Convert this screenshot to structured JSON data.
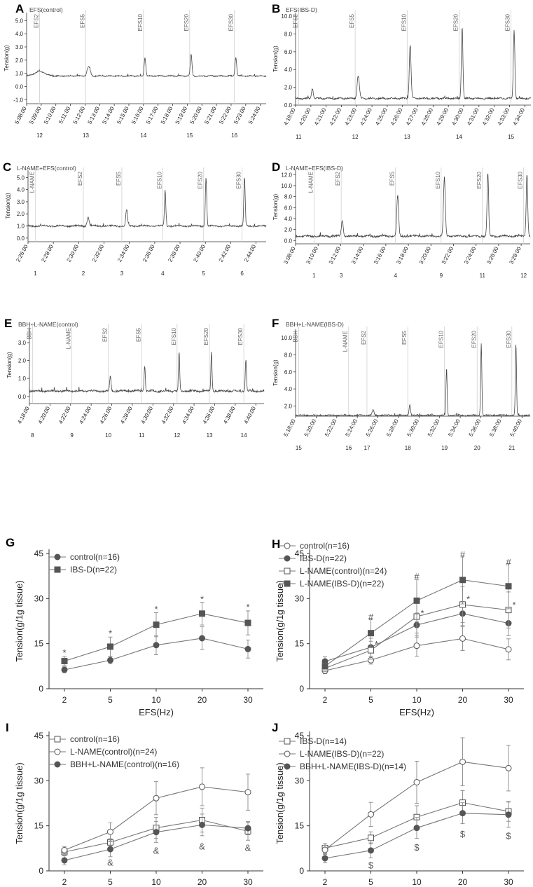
{
  "chart_data": [
    {
      "letter": "A",
      "type": "line",
      "title": "EFS(control)",
      "ylabel": "Tension(g)",
      "ylim": [
        -1.3,
        5.6
      ],
      "yticks": [
        "5.0",
        "4.0",
        "3.0",
        "2.0",
        "1.0",
        "0.0",
        "-1.0"
      ],
      "ytickvals": [
        5,
        4,
        3,
        2,
        1,
        0,
        -1
      ],
      "times": [
        "5:08:00",
        "5:09:00",
        "5:10:00",
        "5:11:00",
        "5:12:00",
        "5:13:00",
        "5:14:00",
        "5:15:00",
        "5:16:00",
        "5:17:00",
        "5:18:00",
        "5:19:00",
        "5:20:00",
        "5:21:00",
        "5:22:00",
        "5:23:00",
        "5:24:00"
      ],
      "tmin": 0,
      "tmax": 16.6,
      "events": [
        {
          "label": "EFS2",
          "t": 0.9,
          "num": "12"
        },
        {
          "label": "EFS5",
          "t": 4.1,
          "num": "13"
        },
        {
          "label": "EFS10",
          "t": 8.1,
          "num": "14"
        },
        {
          "label": "EFS20",
          "t": 11.3,
          "num": "15"
        },
        {
          "label": "EFS30",
          "t": 14.4,
          "num": "16"
        }
      ],
      "baseline": 0.8,
      "peaks": [
        [
          0.9,
          1.15,
          0.5
        ],
        [
          4.3,
          1.5,
          0.15
        ],
        [
          8.2,
          2.2,
          0.08
        ],
        [
          11.4,
          2.4,
          0.08
        ],
        [
          14.5,
          2.2,
          0.08
        ]
      ],
      "noise": 0.04
    },
    {
      "letter": "B",
      "type": "line",
      "title": "EFS(IBS-D)",
      "ylabel": "Tension(g)",
      "ylim": [
        0,
        10.4
      ],
      "yticks": [
        "10.0",
        "8.0",
        "6.0",
        "4.0",
        "2.0",
        "0.0"
      ],
      "ytickvals": [
        10,
        8,
        6,
        4,
        2,
        0
      ],
      "times": [
        "4:19:00",
        "4:20:00",
        "4:21:00",
        "4:22:00",
        "4:23:00",
        "4:24:00",
        "4:25:00",
        "4:26:00",
        "4:27:00",
        "4:28:00",
        "4:29:00",
        "4:30:00",
        "4:31:00",
        "4:32:00",
        "4:33:00",
        "4:34:00"
      ],
      "tmin": 0,
      "tmax": 15.4,
      "events": [
        {
          "label": "EFS2",
          "t": 0.2,
          "num": "11"
        },
        {
          "label": "EFS5",
          "t": 3.9,
          "num": "12"
        },
        {
          "label": "EFS10",
          "t": 7.3,
          "num": "13"
        },
        {
          "label": "EFS20",
          "t": 10.7,
          "num": "14"
        },
        {
          "label": "EFS30",
          "t": 14.1,
          "num": "15"
        }
      ],
      "baseline": 0.75,
      "peaks": [
        [
          1.1,
          1.9,
          0.08
        ],
        [
          4.1,
          3.3,
          0.1
        ],
        [
          7.5,
          6.8,
          0.08
        ],
        [
          10.9,
          8.8,
          0.07
        ],
        [
          14.3,
          8.4,
          0.07
        ]
      ],
      "noise": 0.08
    },
    {
      "letter": "C",
      "type": "line",
      "title": "L-NAME+EFS(control)",
      "ylabel": "Tension(g)",
      "ylim": [
        -0.3,
        5.6
      ],
      "yticks": [
        "5.0",
        "4.0",
        "3.0",
        "2.0",
        "1.0",
        "0.0"
      ],
      "ytickvals": [
        5,
        4,
        3,
        2,
        1,
        0
      ],
      "times": [
        "2:26:00",
        "2:28:00",
        "2:30:00",
        "2:32:00",
        "2:34:00",
        "2:36:00",
        "2:38:00",
        "2:40:00",
        "2:42:00",
        "2:44:00"
      ],
      "tmin": 0,
      "tmax": 9.9,
      "events": [
        {
          "label": "L-NAME",
          "t": 0.3,
          "num": "1"
        },
        {
          "label": "EFS2",
          "t": 2.3,
          "num": "2"
        },
        {
          "label": "EFS5",
          "t": 3.9,
          "num": "3"
        },
        {
          "label": "EFS10",
          "t": 5.6,
          "num": "4"
        },
        {
          "label": "EFS20",
          "t": 7.3,
          "num": "5"
        },
        {
          "label": "EFS30",
          "t": 8.9,
          "num": "6"
        }
      ],
      "baseline": 1.0,
      "peaks": [
        [
          2.5,
          1.7,
          0.06
        ],
        [
          4.1,
          2.35,
          0.05
        ],
        [
          5.7,
          4.0,
          0.04
        ],
        [
          7.4,
          5.0,
          0.04
        ],
        [
          9.0,
          5.0,
          0.04
        ]
      ],
      "noise": 0.06
    },
    {
      "letter": "D",
      "type": "line",
      "title": "L-NAME+EFS(IBS-D)",
      "ylabel": "Tension(g)",
      "ylim": [
        -0.6,
        12.8
      ],
      "yticks": [
        "12.0",
        "10.0",
        "8.0",
        "6.0",
        "4.0",
        "2.0",
        "0.0"
      ],
      "ytickvals": [
        12,
        10,
        8,
        6,
        4,
        2,
        0
      ],
      "times": [
        "3:08:00",
        "3:10:00",
        "3:12:00",
        "3:14:00",
        "3:16:00",
        "3:18:00",
        "3:20:00",
        "3:22:00",
        "3:24:00",
        "3:26:00",
        "3:28:00"
      ],
      "tmin": 0,
      "tmax": 10.8,
      "events": [
        {
          "label": "L-NAME",
          "t": 0.85,
          "num": "1"
        },
        {
          "label": "EFS2",
          "t": 2.1,
          "num": "3"
        },
        {
          "label": "EFS5",
          "t": 4.6,
          "num": "4"
        },
        {
          "label": "EFS10",
          "t": 6.7,
          "num": "9"
        },
        {
          "label": "EFS20",
          "t": 8.6,
          "num": "11"
        },
        {
          "label": "EFS30",
          "t": 10.5,
          "num": "12"
        }
      ],
      "baseline": 0.8,
      "peaks": [
        [
          2.15,
          3.6,
          0.06
        ],
        [
          4.7,
          8.2,
          0.06
        ],
        [
          6.85,
          11.2,
          0.06
        ],
        [
          8.85,
          12.4,
          0.05
        ],
        [
          10.65,
          12.2,
          0.05
        ]
      ],
      "noise": 0.15
    },
    {
      "letter": "E",
      "type": "line",
      "title": "BBH+L-NAME(control)",
      "ylabel": "Tension(g)",
      "ylim": [
        -0.4,
        3.9
      ],
      "yticks": [
        "3.0",
        "2.0",
        "1.0",
        "0.0"
      ],
      "ytickvals": [
        3,
        2,
        1,
        0
      ],
      "times": [
        "4:18:00",
        "4:20:00",
        "4:22:00",
        "4:24:00",
        "4:26:00",
        "4:28:00",
        "4:30:00",
        "4:32:00",
        "4:34:00",
        "4:36:00",
        "4:38:00",
        "4:40:00"
      ],
      "tmin": 0,
      "tmax": 11.6,
      "events": [
        {
          "label": "BBH",
          "t": 0.15,
          "num": "8"
        },
        {
          "label": "L-NAME",
          "t": 2.1,
          "num": "9"
        },
        {
          "label": "EFS2",
          "t": 3.9,
          "num": "10"
        },
        {
          "label": "EFS5",
          "t": 5.55,
          "num": "11"
        },
        {
          "label": "EFS10",
          "t": 7.3,
          "num": "12"
        },
        {
          "label": "EFS20",
          "t": 8.9,
          "num": "13"
        },
        {
          "label": "EFS30",
          "t": 10.6,
          "num": "14"
        }
      ],
      "baseline": 0.3,
      "peaks": [
        [
          4.0,
          1.1,
          0.05
        ],
        [
          5.7,
          1.75,
          0.04
        ],
        [
          7.4,
          2.45,
          0.04
        ],
        [
          9.0,
          2.45,
          0.04
        ],
        [
          10.7,
          2.1,
          0.04
        ]
      ],
      "noise": 0.05
    },
    {
      "letter": "F",
      "type": "line",
      "title": "BBH+L-NAME(IBS-D)",
      "ylabel": "Tension(g)",
      "ylim": [
        0.8,
        11.0
      ],
      "yticks": [
        "10.0",
        "8.0",
        "6.0",
        "4.0",
        "2.0"
      ],
      "ytickvals": [
        10,
        8,
        6,
        4,
        2
      ],
      "times": [
        "5:18:00",
        "5:20:00",
        "5:22:00",
        "5:24:00",
        "5:26:00",
        "5:28:00",
        "5:30:00",
        "5:32:00",
        "5:34:00",
        "5:36:00",
        "5:38:00",
        "5:40:00"
      ],
      "tmin": 0,
      "tmax": 11.5,
      "events": [
        {
          "label": "BBH",
          "t": 0.15,
          "num": "15"
        },
        {
          "label": "L-NAME",
          "t": 2.6,
          "num": "16"
        },
        {
          "label": "EFS2",
          "t": 3.5,
          "num": "17"
        },
        {
          "label": "EFS5",
          "t": 5.5,
          "num": "18"
        },
        {
          "label": "EFS10",
          "t": 7.3,
          "num": "19"
        },
        {
          "label": "EFS20",
          "t": 8.9,
          "num": "20"
        },
        {
          "label": "EFS30",
          "t": 10.6,
          "num": "21"
        }
      ],
      "baseline": 0.9,
      "peaks": [
        [
          3.8,
          1.5,
          0.06
        ],
        [
          5.6,
          2.2,
          0.05
        ],
        [
          7.4,
          6.5,
          0.04
        ],
        [
          9.1,
          9.4,
          0.04
        ],
        [
          10.8,
          9.3,
          0.04
        ]
      ],
      "noise": 0.07
    },
    {
      "letter": "G",
      "type": "line",
      "xlabel": "EFS(Hz)",
      "ylabel": "Tension(g/1g tissue)",
      "ylim": [
        0,
        45
      ],
      "yticks": [
        0,
        15,
        30,
        45
      ],
      "categories": [
        "2",
        "5",
        "10",
        "20",
        "30"
      ],
      "series": [
        {
          "name": "control(n=16)",
          "marker": "circle-filled",
          "values": [
            6.3,
            9.5,
            14.5,
            16.8,
            13.2
          ],
          "err": [
            1.0,
            1.2,
            3.2,
            3.8,
            3.0
          ]
        },
        {
          "name": "IBS-D(n=22)",
          "marker": "square-filled",
          "values": [
            9.2,
            14.0,
            21.3,
            25.0,
            21.9
          ],
          "err": [
            1.5,
            3.2,
            4.0,
            3.8,
            4.0
          ]
        }
      ],
      "annotations": [
        {
          "cat": 0,
          "y": 12.3,
          "text": "*"
        },
        {
          "cat": 1,
          "y": 18.8,
          "text": "*"
        },
        {
          "cat": 2,
          "y": 26.8,
          "text": "*"
        },
        {
          "cat": 3,
          "y": 30.2,
          "text": "*"
        },
        {
          "cat": 4,
          "y": 27.5,
          "text": "*"
        }
      ]
    },
    {
      "letter": "H",
      "type": "line",
      "xlabel": "EFS(Hz)",
      "ylabel": "Tension(g/1g tissue)",
      "ylim": [
        0,
        45
      ],
      "yticks": [
        0,
        15,
        30,
        45
      ],
      "categories": [
        "2",
        "5",
        "10",
        "20",
        "30"
      ],
      "series": [
        {
          "name": "control(n=16)",
          "marker": "circle-open",
          "values": [
            6.0,
            9.5,
            14.3,
            16.7,
            13.1
          ],
          "err": [
            1.0,
            1.3,
            3.5,
            4.0,
            3.5
          ]
        },
        {
          "name": "IBS-D(n=22)",
          "marker": "circle-filled",
          "values": [
            9.1,
            13.8,
            21.2,
            25.0,
            21.8
          ],
          "err": [
            1.5,
            3.0,
            4.0,
            4.0,
            4.2
          ]
        },
        {
          "name": "L-NAME(control)(n=24)",
          "marker": "square-open",
          "values": [
            6.8,
            12.8,
            24.0,
            28.0,
            26.2
          ],
          "err": [
            1.0,
            3.0,
            5.5,
            6.0,
            6.0
          ]
        },
        {
          "name": "L-NAME(IBS-D)(n=22)",
          "marker": "square-filled",
          "values": [
            7.5,
            18.5,
            29.3,
            36.2,
            34.1
          ],
          "err": [
            1.0,
            4.5,
            7.0,
            8.0,
            7.5
          ]
        }
      ],
      "annotations": [
        {
          "cat": 1,
          "y": 24.3,
          "text": "#"
        },
        {
          "cat": 2,
          "y": 37.6,
          "text": "#"
        },
        {
          "cat": 3,
          "y": 45.0,
          "text": "#"
        },
        {
          "cat": 4,
          "y": 42.4,
          "text": "#"
        },
        {
          "cat": 1,
          "y": 15.2,
          "text": "*",
          "dx": 8
        },
        {
          "cat": 2,
          "y": 25.5,
          "text": "*",
          "dx": 8
        },
        {
          "cat": 3,
          "y": 30.2,
          "text": "*",
          "dx": 8
        },
        {
          "cat": 4,
          "y": 28.2,
          "text": "*",
          "dx": 8
        }
      ]
    },
    {
      "letter": "I",
      "type": "line",
      "xlabel": "EFS(Hz)",
      "ylabel": "Tension(g/1g tissue)",
      "ylim": [
        0,
        45
      ],
      "yticks": [
        0,
        15,
        30,
        45
      ],
      "categories": [
        "2",
        "5",
        "10",
        "20",
        "30"
      ],
      "series": [
        {
          "name": "control(n=16)",
          "marker": "square-open",
          "values": [
            6.3,
            9.5,
            14.3,
            16.9,
            13.2
          ],
          "err": [
            1.0,
            1.2,
            3.5,
            4.0,
            3.0
          ]
        },
        {
          "name": "L-NAME(control)(n=24)",
          "marker": "circle-open",
          "values": [
            6.9,
            13.0,
            24.2,
            28.0,
            26.2
          ],
          "err": [
            1.2,
            3.0,
            5.5,
            6.3,
            6.0
          ]
        },
        {
          "name": "BBH+L-NAME(control)(n=16)",
          "marker": "circle-filled",
          "values": [
            3.5,
            7.2,
            12.9,
            15.3,
            14.2
          ],
          "err": [
            1.5,
            2.5,
            3.5,
            3.6,
            2.2
          ]
        }
      ],
      "annotations": [
        {
          "cat": 1,
          "y": 3.1,
          "text": "&"
        },
        {
          "cat": 2,
          "y": 7.1,
          "text": "&"
        },
        {
          "cat": 3,
          "y": 8.5,
          "text": "&"
        },
        {
          "cat": 4,
          "y": 8.0,
          "text": "&"
        }
      ]
    },
    {
      "letter": "J",
      "type": "line",
      "xlabel": "EFS(Hz)",
      "ylabel": "Tension(g/1g tissue)",
      "ylim": [
        0,
        45
      ],
      "yticks": [
        0,
        15,
        30,
        45
      ],
      "categories": [
        "2",
        "5",
        "10",
        "20",
        "30"
      ],
      "series": [
        {
          "name": "IBS-D(n=14)",
          "marker": "square-open",
          "values": [
            7.6,
            11.0,
            17.9,
            22.7,
            19.8
          ],
          "err": [
            1.5,
            2.0,
            3.8,
            4.0,
            3.3
          ]
        },
        {
          "name": "L-NAME(IBS-D)(n=22)",
          "marker": "circle-open",
          "values": [
            7.0,
            18.8,
            29.5,
            36.3,
            34.2
          ],
          "err": [
            1.5,
            4.0,
            7.0,
            8.0,
            7.6
          ]
        },
        {
          "name": "BBH+L-NAME(IBS-D)(n=14)",
          "marker": "circle-filled",
          "values": [
            4.2,
            6.8,
            14.3,
            19.2,
            18.7
          ],
          "err": [
            1.5,
            2.5,
            3.5,
            3.5,
            4.2
          ]
        }
      ],
      "annotations": [
        {
          "cat": 1,
          "y": 2.2,
          "text": "$"
        },
        {
          "cat": 2,
          "y": 8.2,
          "text": "$"
        },
        {
          "cat": 3,
          "y": 12.6,
          "text": "$"
        },
        {
          "cat": 4,
          "y": 12.0,
          "text": "$"
        }
      ]
    }
  ]
}
